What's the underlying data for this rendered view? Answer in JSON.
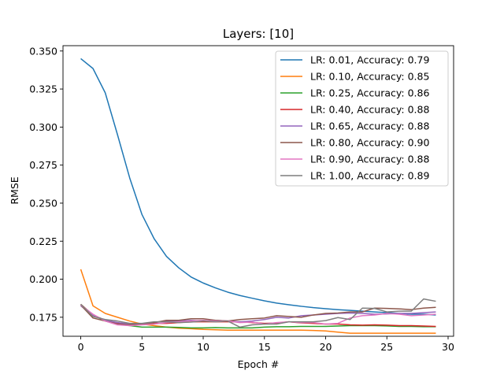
{
  "chart_data": {
    "type": "line",
    "title": "Layers: [10]",
    "xlabel": "Epoch #",
    "ylabel": "RMSE",
    "xlim": [
      -1.45,
      30.45
    ],
    "ylim": [
      0.1625,
      0.3535
    ],
    "xticks": [
      0,
      5,
      10,
      15,
      20,
      25,
      30
    ],
    "yticks": [
      0.175,
      0.2,
      0.225,
      0.25,
      0.275,
      0.3,
      0.325,
      0.35
    ],
    "ytick_labels": [
      "0.175",
      "0.200",
      "0.225",
      "0.250",
      "0.275",
      "0.300",
      "0.325",
      "0.350"
    ],
    "grid": false,
    "legend_position": "upper right",
    "x": [
      0,
      1,
      2,
      3,
      4,
      5,
      6,
      7,
      8,
      9,
      10,
      11,
      12,
      13,
      14,
      15,
      16,
      17,
      18,
      19,
      20,
      21,
      22,
      23,
      24,
      25,
      26,
      27,
      28,
      29
    ],
    "series": [
      {
        "name": "LR: 0.01, Accuracy: 0.79",
        "color": "#1f77b4",
        "values": [
          0.345,
          0.3385,
          0.3225,
          0.295,
          0.2665,
          0.2425,
          0.2265,
          0.215,
          0.2075,
          0.2015,
          0.1975,
          0.1943,
          0.1915,
          0.1893,
          0.1875,
          0.1858,
          0.1843,
          0.1832,
          0.1822,
          0.1813,
          0.1806,
          0.18,
          0.1795,
          0.179,
          0.1785,
          0.178,
          0.1775,
          0.177,
          0.177,
          0.1765
        ]
      },
      {
        "name": "LR: 0.10, Accuracy: 0.85",
        "color": "#ff7f0e",
        "values": [
          0.2065,
          0.1825,
          0.1775,
          0.175,
          0.1725,
          0.1705,
          0.1695,
          0.1685,
          0.1678,
          0.1675,
          0.167,
          0.1668,
          0.1665,
          0.1665,
          0.1665,
          0.1665,
          0.1665,
          0.1665,
          0.1665,
          0.1663,
          0.166,
          0.1652,
          0.1645,
          0.1645,
          0.1645,
          0.1645,
          0.1645,
          0.1645,
          0.1645,
          0.1645
        ]
      },
      {
        "name": "LR: 0.25, Accuracy: 0.86",
        "color": "#2ca02c",
        "values": [
          0.1835,
          0.1765,
          0.1725,
          0.1705,
          0.1695,
          0.1685,
          0.1685,
          0.1685,
          0.1683,
          0.168,
          0.168,
          0.1682,
          0.168,
          0.168,
          0.168,
          0.1685,
          0.1688,
          0.1688,
          0.169,
          0.169,
          0.169,
          0.1692,
          0.1695,
          0.1695,
          0.1695,
          0.1693,
          0.169,
          0.169,
          0.1688,
          0.1688
        ]
      },
      {
        "name": "LR: 0.40, Accuracy: 0.88",
        "color": "#d62728",
        "values": [
          0.1835,
          0.1765,
          0.173,
          0.171,
          0.1705,
          0.1705,
          0.171,
          0.171,
          0.1715,
          0.172,
          0.172,
          0.172,
          0.172,
          0.172,
          0.1715,
          0.171,
          0.1712,
          0.172,
          0.1713,
          0.171,
          0.1705,
          0.1705,
          0.17,
          0.1698,
          0.17,
          0.1698,
          0.1695,
          0.1695,
          0.1692,
          0.169
        ]
      },
      {
        "name": "LR: 0.65, Accuracy: 0.88",
        "color": "#9467bd",
        "values": [
          0.1825,
          0.1765,
          0.173,
          0.1715,
          0.1705,
          0.1705,
          0.1715,
          0.1725,
          0.1725,
          0.173,
          0.1725,
          0.173,
          0.1725,
          0.172,
          0.1725,
          0.1735,
          0.175,
          0.1745,
          0.176,
          0.1765,
          0.177,
          0.1775,
          0.1778,
          0.1775,
          0.177,
          0.1772,
          0.1775,
          0.1775,
          0.178,
          0.1785
        ]
      },
      {
        "name": "LR: 0.80, Accuracy: 0.90",
        "color": "#8c564b",
        "values": [
          0.183,
          0.1745,
          0.1725,
          0.1705,
          0.17,
          0.1705,
          0.1715,
          0.173,
          0.173,
          0.174,
          0.174,
          0.173,
          0.1725,
          0.1735,
          0.174,
          0.1745,
          0.176,
          0.1755,
          0.175,
          0.1765,
          0.1775,
          0.1778,
          0.1785,
          0.1785,
          0.181,
          0.1808,
          0.1805,
          0.18,
          0.181,
          0.1815
        ]
      },
      {
        "name": "LR: 0.90, Accuracy: 0.88",
        "color": "#e377c2",
        "values": [
          0.183,
          0.177,
          0.1725,
          0.17,
          0.1695,
          0.17,
          0.1705,
          0.1715,
          0.172,
          0.1725,
          0.173,
          0.1725,
          0.1725,
          0.1715,
          0.1718,
          0.1705,
          0.1715,
          0.172,
          0.1715,
          0.1715,
          0.1705,
          0.171,
          0.1745,
          0.176,
          0.1765,
          0.1775,
          0.177,
          0.176,
          0.1765,
          0.177
        ]
      },
      {
        "name": "LR: 1.00, Accuracy: 0.89",
        "color": "#7f7f7f",
        "values": [
          0.1835,
          0.1755,
          0.1735,
          0.1725,
          0.171,
          0.171,
          0.172,
          0.172,
          0.1715,
          0.1718,
          0.1725,
          0.172,
          0.1725,
          0.1685,
          0.17,
          0.1705,
          0.1705,
          0.172,
          0.172,
          0.172,
          0.1728,
          0.1748,
          0.1735,
          0.181,
          0.1808,
          0.1785,
          0.179,
          0.179,
          0.187,
          0.1855
        ]
      }
    ]
  }
}
